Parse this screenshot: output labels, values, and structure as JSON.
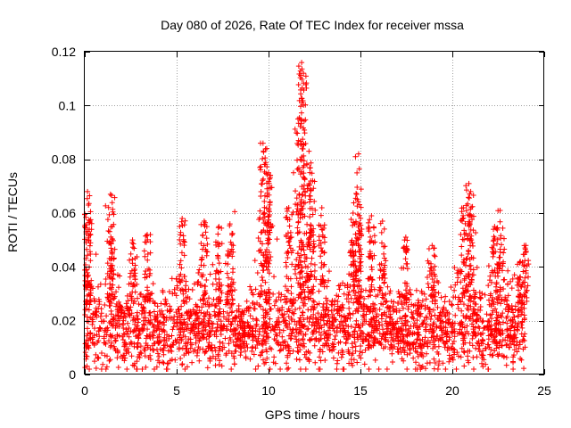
{
  "chart_data": {
    "type": "scatter",
    "title": "Day 080 of 2026, Rate Of TEC Index for receiver mssa",
    "xlabel": "GPS time / hours",
    "ylabel": "ROTI / TECUs",
    "xlim": [
      0,
      25
    ],
    "ylim": [
      0,
      0.12
    ],
    "grid": true,
    "marker": "+",
    "x_ticks": [
      0,
      5,
      10,
      15,
      20,
      25
    ],
    "x_tick_labels": [
      "0",
      "5",
      "10",
      "15",
      "20",
      "25"
    ],
    "y_ticks": [
      0,
      0.02,
      0.04,
      0.06,
      0.08,
      0.1,
      0.12
    ],
    "y_tick_labels": [
      "0",
      "0.02",
      "0.04",
      "0.06",
      "0.08",
      "0.1",
      "0.12"
    ],
    "series": [
      {
        "name": "ROTI",
        "color": "#ff0000",
        "x_range": [
          0,
          24
        ],
        "typical_band": [
          0.005,
          0.035
        ],
        "baseline": 0.016,
        "peaks": [
          {
            "x": 0.15,
            "y": 0.068
          },
          {
            "x": 0.2,
            "y": 0.063
          },
          {
            "x": 1.4,
            "y": 0.067
          },
          {
            "x": 1.5,
            "y": 0.055
          },
          {
            "x": 2.6,
            "y": 0.05
          },
          {
            "x": 3.4,
            "y": 0.052
          },
          {
            "x": 5.3,
            "y": 0.058
          },
          {
            "x": 6.5,
            "y": 0.057
          },
          {
            "x": 7.3,
            "y": 0.055
          },
          {
            "x": 7.9,
            "y": 0.056
          },
          {
            "x": 9.7,
            "y": 0.086
          },
          {
            "x": 9.9,
            "y": 0.084
          },
          {
            "x": 10.0,
            "y": 0.075
          },
          {
            "x": 11.1,
            "y": 0.062
          },
          {
            "x": 11.6,
            "y": 0.095
          },
          {
            "x": 11.8,
            "y": 0.116
          },
          {
            "x": 11.9,
            "y": 0.112
          },
          {
            "x": 12.2,
            "y": 0.083
          },
          {
            "x": 12.4,
            "y": 0.072
          },
          {
            "x": 12.9,
            "y": 0.062
          },
          {
            "x": 14.6,
            "y": 0.06
          },
          {
            "x": 14.9,
            "y": 0.082
          },
          {
            "x": 14.8,
            "y": 0.067
          },
          {
            "x": 15.6,
            "y": 0.059
          },
          {
            "x": 16.2,
            "y": 0.057
          },
          {
            "x": 17.4,
            "y": 0.05
          },
          {
            "x": 18.9,
            "y": 0.048
          },
          {
            "x": 20.6,
            "y": 0.062
          },
          {
            "x": 20.9,
            "y": 0.071
          },
          {
            "x": 21.0,
            "y": 0.068
          },
          {
            "x": 22.3,
            "y": 0.055
          },
          {
            "x": 22.6,
            "y": 0.061
          },
          {
            "x": 23.7,
            "y": 0.042
          },
          {
            "x": 24.0,
            "y": 0.048
          }
        ]
      }
    ]
  }
}
